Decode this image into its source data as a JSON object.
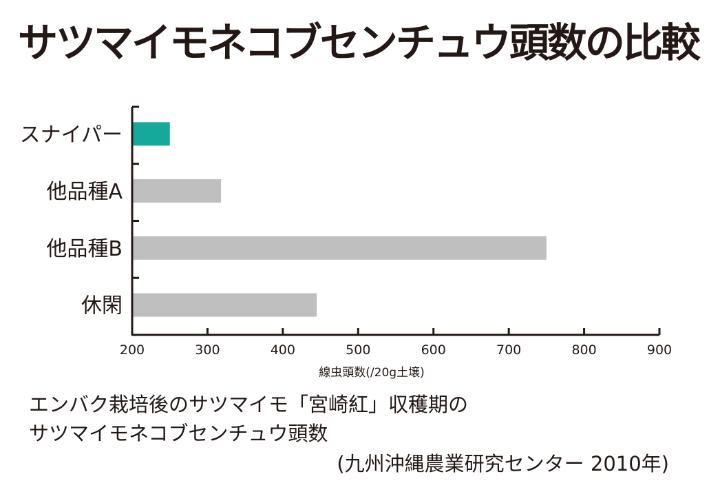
{
  "title": "サツマイモネコブセンチュウ頭数の比較",
  "chart_data": {
    "type": "bar",
    "orientation": "horizontal",
    "categories": [
      "スナイパー",
      "他品種A",
      "他品種B",
      "休閑"
    ],
    "values": [
      250,
      318,
      750,
      445
    ],
    "bar_colors": [
      "#17a89c",
      "#bfbfbf",
      "#bfbfbf",
      "#bfbfbf"
    ],
    "xlabel": "線虫頭数(/20g土壌)",
    "xlim": [
      200,
      900
    ],
    "xticks": [
      "200",
      "300",
      "400",
      "500",
      "600",
      "700",
      "800",
      "900"
    ],
    "grid": false
  },
  "caption": {
    "line1": "エンバク栽培後のサツマイモ「宮崎紅」収穫期の",
    "line2": "サツマイモネコブセンチュウ頭数",
    "source": "(九州沖縄農業研究センター 2010年)"
  }
}
